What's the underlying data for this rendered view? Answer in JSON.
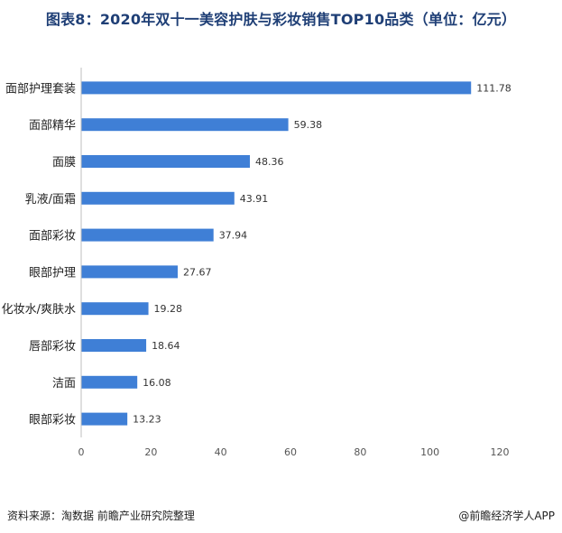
{
  "header": {
    "title": "图表8：2020年双十一美容护肤与彩妆销售TOP10品类（单位：亿元）"
  },
  "footer": {
    "source": "资料来源：淘数据 前瞻产业研究院整理",
    "brand": "@前瞻经济学人APP"
  },
  "watermark": {
    "text": "前瞻产业研究院"
  },
  "colors": {
    "bar": "#3f7fd6",
    "axis": "#bfbfbf",
    "title": "#1f3f76"
  },
  "chart_data": {
    "type": "bar",
    "orientation": "horizontal",
    "title": "图表8：2020年双十一美容护肤与彩妆销售TOP10品类（单位：亿元）",
    "categories": [
      "面部护理套装",
      "面部精华",
      "面膜",
      "乳液/面霜",
      "面部彩妆",
      "眼部护理",
      "化妆水/爽肤水",
      "唇部彩妆",
      "洁面",
      "眼部彩妆"
    ],
    "values": [
      111.78,
      59.38,
      48.36,
      43.91,
      37.94,
      27.67,
      19.28,
      18.64,
      16.08,
      13.23
    ],
    "value_labels": [
      "111.78",
      "59.38",
      "48.36",
      "43.91",
      "37.94",
      "27.67",
      "19.28",
      "18.64",
      "16.08",
      "13.23"
    ],
    "xlim": [
      0,
      120
    ],
    "xticks": [
      0,
      20,
      40,
      60,
      80,
      100,
      120
    ],
    "xlabel": "",
    "ylabel": "",
    "grid": false,
    "legend": "none"
  }
}
